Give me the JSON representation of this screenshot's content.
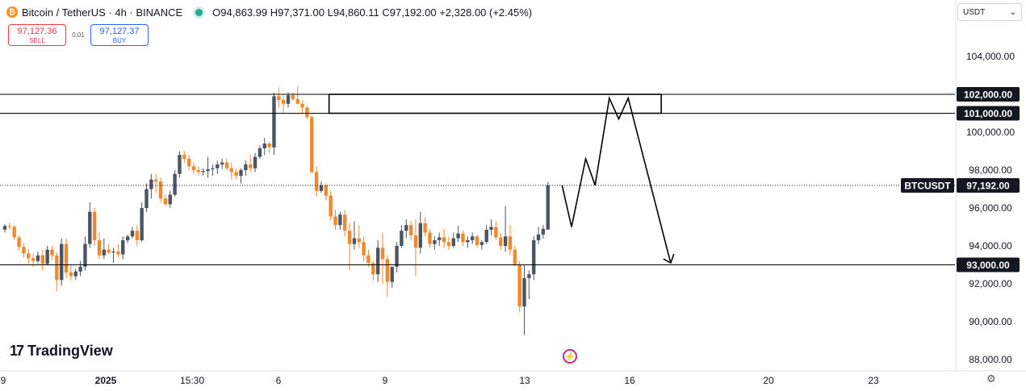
{
  "header": {
    "symbol": "Bitcoin / TetherUS · 4h · BINANCE",
    "coin_icon": "bitcoin-icon",
    "open": "O94,863.99",
    "high": "H97,371.00",
    "low": "L94,860.11",
    "close": "C97,192.00",
    "change": "+2,328.00 (+2.45%)",
    "status_color": "#22ab94"
  },
  "trade": {
    "sell_price": "97,127.36",
    "sell_label": "SELL",
    "spread": "0.01",
    "buy_price": "97,127.37",
    "buy_label": "BUY"
  },
  "currency": {
    "value": "USDT",
    "icon": "chevron-down-icon"
  },
  "branding": {
    "name": "TradingView"
  },
  "colors": {
    "up": "#4b5563",
    "down": "#f0892c",
    "price_label_bg": "#131722",
    "line": "#000000"
  },
  "chart_data": {
    "type": "candlestick",
    "symbol_label": "BTCUSDT",
    "last_price": 97192,
    "last_price_label": "97,192.00",
    "y_axis": {
      "range": [
        87700,
        105800
      ],
      "ticks": [
        88000,
        90000,
        92000,
        94000,
        96000,
        98000,
        100000,
        104000
      ],
      "tick_labels": [
        "88,000.00",
        "90,000.00",
        "92,000.00",
        "94,000.00",
        "96,000.00",
        "98,000.00",
        "100,000.00",
        "104,000.00"
      ]
    },
    "x_axis": {
      "labels": [
        "9",
        "2025",
        "15:30",
        "6",
        "9",
        "13",
        "16",
        "20",
        "23"
      ]
    },
    "levels": [
      {
        "value": 102000,
        "label": "102,000.00"
      },
      {
        "value": 101000,
        "label": "101,000.00"
      },
      {
        "value": 93000,
        "label": "93,000.00"
      }
    ],
    "zone": {
      "from_candle": 69,
      "to_bar": 139,
      "top": 102000,
      "bottom": 101000
    },
    "projection": [
      [
        118,
        97200
      ],
      [
        120,
        95000
      ],
      [
        123,
        98600
      ],
      [
        125,
        97200
      ],
      [
        128,
        101800
      ],
      [
        130,
        100700
      ],
      [
        132,
        101800
      ],
      [
        141,
        93100
      ]
    ],
    "candles": [
      [
        94860,
        95150,
        94700,
        95050
      ],
      [
        95050,
        95220,
        94850,
        95000
      ],
      [
        95000,
        95100,
        94300,
        94450
      ],
      [
        94450,
        94550,
        93750,
        93950
      ],
      [
        93950,
        94150,
        93400,
        93600
      ],
      [
        93600,
        93850,
        93050,
        93350
      ],
      [
        93350,
        93600,
        92900,
        93200
      ],
      [
        93200,
        93700,
        93050,
        93500
      ],
      [
        93500,
        93800,
        92700,
        93050
      ],
      [
        93050,
        94000,
        93000,
        93800
      ],
      [
        93800,
        94000,
        93250,
        93500
      ],
      [
        93500,
        93650,
        91600,
        92200
      ],
      [
        92200,
        94400,
        91900,
        94100
      ],
      [
        94100,
        94400,
        92300,
        92600
      ],
      [
        92600,
        93000,
        92200,
        92400
      ],
      [
        92400,
        92800,
        92200,
        92650
      ],
      [
        92650,
        93200,
        92400,
        92900
      ],
      [
        92900,
        94500,
        92700,
        94100
      ],
      [
        94100,
        96300,
        93900,
        95800
      ],
      [
        95800,
        96000,
        94000,
        94300
      ],
      [
        94300,
        94700,
        93300,
        93500
      ],
      [
        93500,
        94400,
        93300,
        93800
      ],
      [
        93800,
        94100,
        93550,
        93650
      ],
      [
        93650,
        93900,
        93100,
        93700
      ],
      [
        93700,
        94100,
        93400,
        93550
      ],
      [
        93550,
        94500,
        93300,
        94300
      ],
      [
        94300,
        94600,
        94150,
        94500
      ],
      [
        94500,
        95000,
        94400,
        94800
      ],
      [
        94800,
        95100,
        94000,
        94300
      ],
      [
        94300,
        96300,
        94200,
        96000
      ],
      [
        96000,
        97300,
        95800,
        97000
      ],
      [
        97000,
        97800,
        96500,
        97500
      ],
      [
        97500,
        97800,
        96800,
        97400
      ],
      [
        97400,
        97600,
        96300,
        96500
      ],
      [
        96500,
        96700,
        96100,
        96200
      ],
      [
        96200,
        96900,
        96000,
        96700
      ],
      [
        96700,
        98000,
        96600,
        97800
      ],
      [
        97800,
        99000,
        97600,
        98800
      ],
      [
        98800,
        99000,
        98400,
        98600
      ],
      [
        98600,
        98800,
        98000,
        98200
      ],
      [
        98200,
        98400,
        97800,
        98000
      ],
      [
        98000,
        98200,
        97700,
        97900
      ],
      [
        97900,
        98100,
        97700,
        97950
      ],
      [
        97950,
        98700,
        97600,
        98050
      ],
      [
        98050,
        98300,
        97700,
        98100
      ],
      [
        98100,
        98500,
        97800,
        98300
      ],
      [
        98300,
        98600,
        98050,
        98400
      ],
      [
        98400,
        98600,
        98000,
        98100
      ],
      [
        98100,
        98400,
        97500,
        97900
      ],
      [
        97900,
        98100,
        97500,
        97700
      ],
      [
        97700,
        98100,
        97300,
        98000
      ],
      [
        98000,
        98500,
        97700,
        98300
      ],
      [
        98300,
        98800,
        97900,
        98100
      ],
      [
        98100,
        98900,
        97900,
        98700
      ],
      [
        98700,
        99300,
        98600,
        99150
      ],
      [
        99150,
        99700,
        98800,
        99400
      ],
      [
        99400,
        99500,
        98900,
        99200
      ],
      [
        99200,
        102100,
        98800,
        101900
      ],
      [
        101900,
        102350,
        101300,
        101700
      ],
      [
        101700,
        101950,
        101000,
        101500
      ],
      [
        101500,
        102100,
        101300,
        101950
      ],
      [
        101950,
        102100,
        101650,
        101750
      ],
      [
        101750,
        102400,
        101600,
        101500
      ],
      [
        101500,
        101700,
        101000,
        101300
      ],
      [
        101300,
        101400,
        100700,
        100800
      ],
      [
        100800,
        100900,
        97800,
        97900
      ],
      [
        97900,
        98200,
        96600,
        96900
      ],
      [
        96900,
        97400,
        96800,
        97200
      ],
      [
        97200,
        97300,
        96400,
        96650
      ],
      [
        96650,
        96900,
        95350,
        95550
      ],
      [
        95550,
        95900,
        94850,
        95100
      ],
      [
        95100,
        95800,
        94850,
        95650
      ],
      [
        95650,
        95900,
        94500,
        94800
      ],
      [
        94800,
        95200,
        92700,
        94100
      ],
      [
        94100,
        95300,
        93800,
        94400
      ],
      [
        94400,
        95100,
        93900,
        94200
      ],
      [
        94200,
        94500,
        93200,
        93500
      ],
      [
        93500,
        93800,
        92900,
        93100
      ],
      [
        93100,
        93200,
        92200,
        92500
      ],
      [
        92500,
        94300,
        92100,
        93900
      ],
      [
        93900,
        94700,
        92000,
        93300
      ],
      [
        93300,
        93500,
        91300,
        92100
      ],
      [
        92100,
        92900,
        91800,
        92900
      ],
      [
        92900,
        94200,
        92600,
        94000
      ],
      [
        94000,
        95100,
        93900,
        94800
      ],
      [
        94800,
        95400,
        94400,
        95100
      ],
      [
        95100,
        95300,
        94300,
        94550
      ],
      [
        94550,
        95400,
        92400,
        93900
      ],
      [
        93900,
        95800,
        93600,
        95200
      ],
      [
        95200,
        95500,
        94500,
        94700
      ],
      [
        94700,
        94900,
        93900,
        94100
      ],
      [
        94100,
        94500,
        93800,
        94300
      ],
      [
        94300,
        94700,
        94000,
        94450
      ],
      [
        94450,
        94900,
        93900,
        94200
      ],
      [
        94200,
        94500,
        93800,
        94000
      ],
      [
        94000,
        94700,
        93900,
        94400
      ],
      [
        94400,
        95050,
        94200,
        94650
      ],
      [
        94650,
        94800,
        94000,
        94200
      ],
      [
        94200,
        94500,
        93900,
        94300
      ],
      [
        94300,
        94700,
        94100,
        94500
      ],
      [
        94500,
        94600,
        93900,
        94050
      ],
      [
        94050,
        94300,
        93800,
        94200
      ],
      [
        94200,
        95100,
        94100,
        94850
      ],
      [
        94850,
        95400,
        94550,
        95000
      ],
      [
        95000,
        95300,
        94300,
        94450
      ],
      [
        94450,
        94700,
        93800,
        94000
      ],
      [
        94000,
        96100,
        93700,
        94500
      ],
      [
        94500,
        95100,
        93500,
        93800
      ],
      [
        93800,
        94000,
        92900,
        93000
      ],
      [
        93000,
        93200,
        90500,
        90800
      ],
      [
        90800,
        93000,
        89300,
        92300
      ],
      [
        92300,
        92700,
        91200,
        92500
      ],
      [
        92500,
        94500,
        92200,
        94300
      ],
      [
        94300,
        95000,
        94100,
        94600
      ],
      [
        94600,
        95100,
        94400,
        94900
      ],
      [
        94860,
        97371,
        94860.11,
        97192
      ]
    ]
  }
}
